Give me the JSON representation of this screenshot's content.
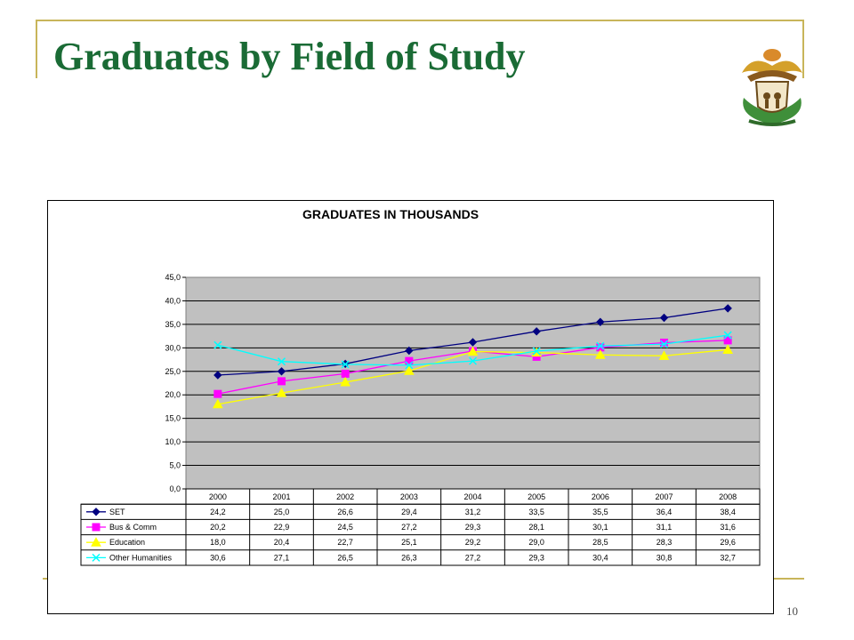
{
  "slide": {
    "title": "Graduates by Field of Study",
    "page_number": "10",
    "crest_icon": "coat-of-arms-icon"
  },
  "colors": {
    "title_green": "#1a6b35",
    "frame_gold": "#c8b55a",
    "plot_bg": "#c0c0c0"
  },
  "chart_data": {
    "type": "line",
    "title": "GRADUATES IN THOUSANDS",
    "xlabel": "",
    "ylabel": "",
    "categories": [
      "2000",
      "2001",
      "2002",
      "2003",
      "2004",
      "2005",
      "2006",
      "2007",
      "2008"
    ],
    "ylim": [
      0,
      45
    ],
    "yticks": [
      "0,0",
      "5,0",
      "10,0",
      "15,0",
      "20,0",
      "25,0",
      "30,0",
      "35,0",
      "40,0",
      "45,0"
    ],
    "grid": true,
    "legend": "data-table-below",
    "series": [
      {
        "name": "SET",
        "color": "#000080",
        "marker": "diamond",
        "values": [
          24.2,
          25.0,
          26.6,
          29.4,
          31.2,
          33.5,
          35.5,
          36.4,
          38.4
        ],
        "labels": [
          "24,2",
          "25,0",
          "26,6",
          "29,4",
          "31,2",
          "33,5",
          "35,5",
          "36,4",
          "38,4"
        ]
      },
      {
        "name": "Bus & Comm",
        "color": "#ff00ff",
        "marker": "square",
        "values": [
          20.2,
          22.9,
          24.5,
          27.2,
          29.3,
          28.1,
          30.1,
          31.1,
          31.6
        ],
        "labels": [
          "20,2",
          "22,9",
          "24,5",
          "27,2",
          "29,3",
          "28,1",
          "30,1",
          "31,1",
          "31,6"
        ]
      },
      {
        "name": "Education",
        "color": "#ffff00",
        "marker": "triangle",
        "values": [
          18.0,
          20.4,
          22.7,
          25.1,
          29.2,
          29.0,
          28.5,
          28.3,
          29.6
        ],
        "labels": [
          "18,0",
          "20,4",
          "22,7",
          "25,1",
          "29,2",
          "29,0",
          "28,5",
          "28,3",
          "29,6"
        ]
      },
      {
        "name": "Other Humanities",
        "color": "#00ffff",
        "marker": "x",
        "values": [
          30.6,
          27.1,
          26.5,
          26.3,
          27.2,
          29.3,
          30.4,
          30.8,
          32.7
        ],
        "labels": [
          "30,6",
          "27,1",
          "26,5",
          "26,3",
          "27,2",
          "29,3",
          "30,4",
          "30,8",
          "32,7"
        ]
      }
    ]
  }
}
